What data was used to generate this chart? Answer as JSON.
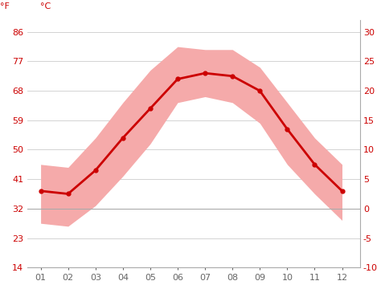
{
  "months": [
    1,
    2,
    3,
    4,
    5,
    6,
    7,
    8,
    9,
    10,
    11,
    12
  ],
  "month_labels": [
    "01",
    "02",
    "03",
    "04",
    "05",
    "06",
    "07",
    "08",
    "09",
    "10",
    "11",
    "12"
  ],
  "avg_temp_c": [
    3.0,
    2.5,
    6.5,
    12.0,
    17.0,
    22.0,
    23.0,
    22.5,
    20.0,
    13.5,
    7.5,
    3.0
  ],
  "max_temp_c": [
    7.5,
    7.0,
    12.0,
    18.0,
    23.5,
    27.5,
    27.0,
    27.0,
    24.0,
    18.0,
    12.0,
    7.5
  ],
  "min_temp_c": [
    -2.5,
    -3.0,
    0.5,
    5.5,
    11.0,
    18.0,
    19.0,
    18.0,
    14.5,
    7.5,
    2.5,
    -2.0
  ],
  "ylim_c": [
    -10,
    32
  ],
  "yticks_c": [
    -10,
    -5,
    0,
    5,
    10,
    15,
    20,
    25,
    30
  ],
  "yticks_f": [
    14,
    23,
    32,
    41,
    50,
    59,
    68,
    77,
    86
  ],
  "line_color": "#cc0000",
  "band_color": "#f5aaaa",
  "zero_line_color": "#aaaaaa",
  "background_color": "#ffffff",
  "grid_color": "#cccccc",
  "label_color": "#cc0000",
  "tick_color": "#666666",
  "right_spine_color": "#aaaaaa",
  "bottom_spine_color": "#aaaaaa",
  "label_f": "°F",
  "label_c": "°C"
}
